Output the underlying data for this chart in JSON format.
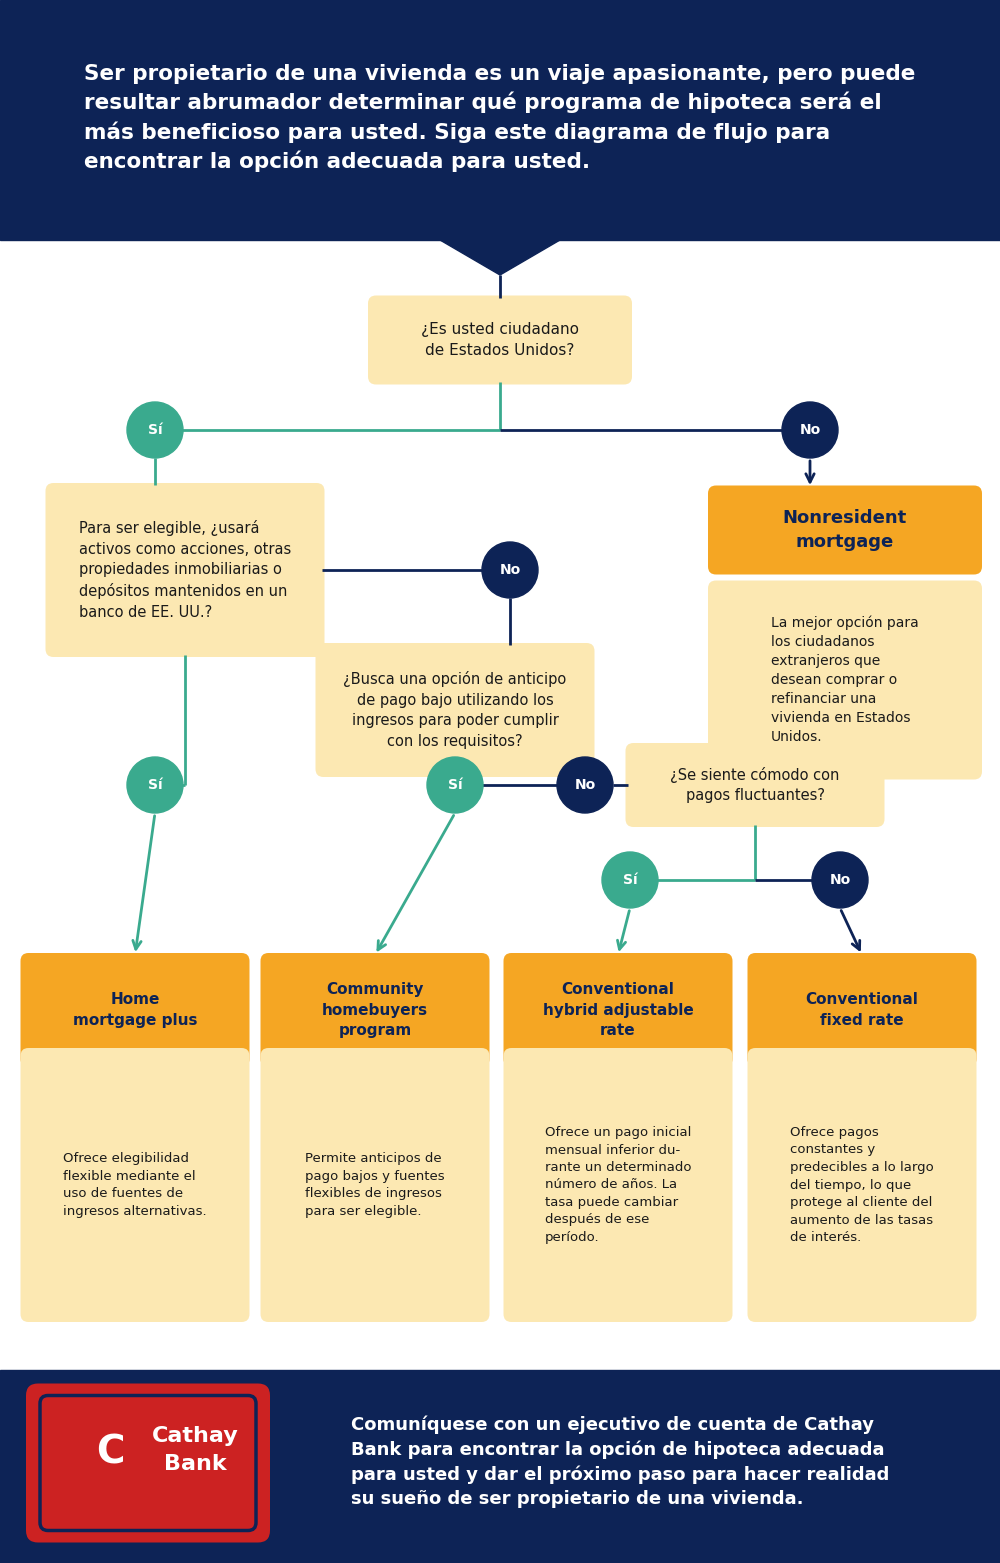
{
  "bg_header_color": "#0d2356",
  "bg_body_color": "#ffffff",
  "bg_footer_color": "#0d2356",
  "header_text": "Ser propietario de una vivienda es un viaje apasionante, pero puede\nresultar abrumador determinar qué programa de hipoteca será el\nmás beneficioso para usted. Siga este diagrama de flujo para\nencontrar la opción adecuada para usted.",
  "header_text_color": "#ffffff",
  "question_box_color": "#fce8b2",
  "question_text_color": "#1a1a1a",
  "yes_circle_color": "#3aaa8e",
  "no_circle_color": "#0d2356",
  "circle_text_color": "#ffffff",
  "orange_box_color": "#f5a623",
  "orange_text_color": "#0d2356",
  "desc_box_color": "#fce8b2",
  "desc_text_color": "#1a1a1a",
  "arrow_color_teal": "#3aaa8e",
  "arrow_color_dark": "#0d2356",
  "line_color_teal": "#3aaa8e",
  "line_color_dark": "#0d2356",
  "footer_text": "Comuníquese con un ejecutivo de cuenta de Cathay\nBank para encontrar la opción de hipoteca adecuada\npara usted y dar el próximo paso para hacer realidad\nsu sueño de ser propietario de una vivienda.",
  "footer_text_color": "#ffffff",
  "q1": "¿Es usted ciudadano\nde Estados Unidos?",
  "q2": "Para ser elegible, ¿usará\nactivos como acciones, otras\npropiedades inmobiliarias o\ndepósitos mantenidos en un\nbanco de EE. UU.?",
  "q3": "¿Busca una opción de anticipo\nde pago bajo utilizando los\ningresos para poder cumplir\ncon los requisitos?",
  "q4": "¿Se siente cómodo con\npagos fluctuantes?",
  "r1_title": "Home\nmortgage plus",
  "r1_desc": "Ofrece elegibilidad\nflexible mediante el\nuso de fuentes de\ningresos alternativas.",
  "r2_title": "Community\nhomebuyers\nprogram",
  "r2_desc": "Permite anticipos de\npago bajos y fuentes\nflexibles de ingresos\npara ser elegible.",
  "r3_title": "Conventional\nhybrid adjustable\nrate",
  "r3_desc": "Ofrece un pago inicial\nmensual inferior du-\nrante un determinado\nnúmero de años. La\ntasa puede cambiar\ndespués de ese\nperíodo.",
  "r4_title": "Conventional\nfixed rate",
  "r4_desc": "Ofrece pagos\nconstantes y\npredecibles a lo largo\ndel tiempo, lo que\nprotege al cliente del\naumento de las tasas\nde interés.",
  "nr_title": "Nonresident\nmortgage",
  "nr_desc": "La mejor opción para\nlos ciudadanos\nextranjeros que\ndesean comprar o\nrefinanciar una\nvivienda en Estados\nUnidos."
}
